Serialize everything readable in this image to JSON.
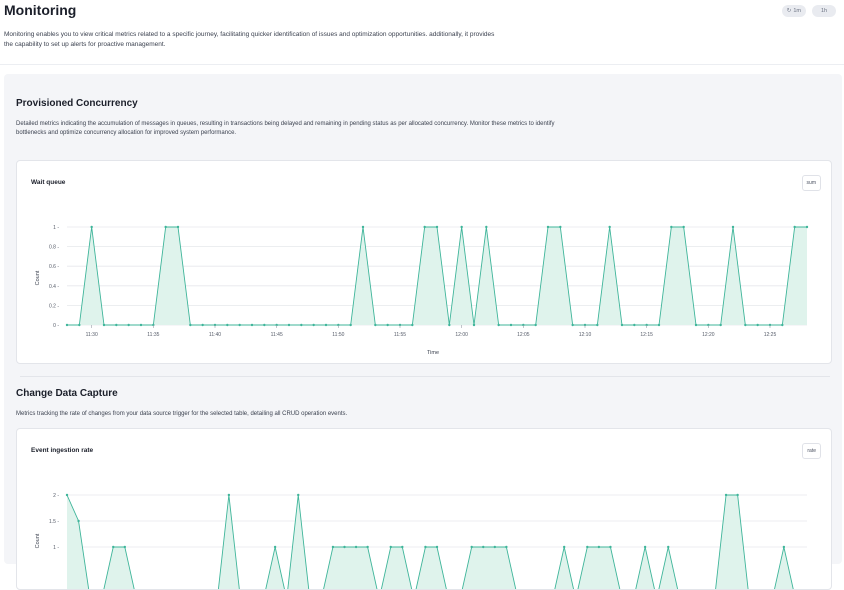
{
  "header": {
    "title": "Monitoring",
    "description": "Monitoring enables you to view critical metrics related to a specific journey, facilitating quicker identification of issues and optimization opportunities. additionally, it provides the capability to set up alerts for proactive management.",
    "time_range_label": "1m",
    "refresh_label": "1h"
  },
  "sections": [
    {
      "title": "Provisioned Concurrency",
      "description": "Detailed metrics indicating the accumulation of messages in queues, resulting in transactions being delayed and remaining in pending status as per allocated concurrency. Monitor these metrics to identify bottlenecks and optimize concurrency allocation for improved system performance.",
      "chart_title": "Wait queue",
      "aggregation": "sum"
    },
    {
      "title": "Change Data Capture",
      "description": "Metrics tracking the rate of changes from your data source trigger for the selected table, detailing all CRUD operation events.",
      "chart_title": "Event ingestion rate",
      "aggregation": "rate"
    }
  ],
  "colors": {
    "series_line": "#3fb59a",
    "series_fill": "#dff3ec",
    "grid": "#e6e8ec"
  },
  "chart_data": [
    {
      "type": "area",
      "title": "Wait queue",
      "xlabel": "Time",
      "ylabel": "Count",
      "ylim": [
        0,
        1
      ],
      "yticks": [
        "0",
        "0.2",
        "0.4",
        "0.6",
        "0.8",
        "1"
      ],
      "xticks": [
        "11:30",
        "11:35",
        "11:40",
        "11:45",
        "11:50",
        "11:55",
        "12:00",
        "12:05",
        "12:10",
        "12:15",
        "12:20",
        "12:25"
      ],
      "x_start": "11:28",
      "x_step_minutes": 1,
      "values": [
        0,
        0,
        1,
        0,
        0,
        0,
        0,
        0,
        1,
        1,
        0,
        0,
        0,
        0,
        0,
        0,
        0,
        0,
        0,
        0,
        0,
        0,
        0,
        0,
        1,
        0,
        0,
        0,
        0,
        1,
        1,
        0,
        1,
        0,
        1,
        0,
        0,
        0,
        0,
        1,
        1,
        0,
        0,
        0,
        1,
        0,
        0,
        0,
        0,
        1,
        1,
        0,
        0,
        0,
        1,
        0,
        0,
        0,
        0,
        1,
        1
      ]
    },
    {
      "type": "area",
      "title": "Event ingestion rate",
      "ylabel": "Count",
      "ylim": [
        0,
        2
      ],
      "yticks": [
        "1",
        "1.5",
        "2"
      ],
      "x_start": "11:28",
      "x_step_minutes": 1,
      "values": [
        2,
        1.5,
        0,
        0,
        1,
        1,
        0,
        0,
        0,
        0,
        0,
        0,
        0,
        0,
        2,
        0,
        0,
        0,
        1,
        0,
        2,
        0,
        0,
        1,
        1,
        1,
        1,
        0,
        1,
        1,
        0,
        1,
        1,
        0,
        0,
        1,
        1,
        1,
        1,
        0,
        0,
        0,
        0,
        1,
        0,
        1,
        1,
        1,
        0,
        0,
        1,
        0,
        1,
        0,
        0,
        0,
        0,
        2,
        2,
        0,
        0,
        0,
        1,
        0,
        0
      ]
    }
  ]
}
